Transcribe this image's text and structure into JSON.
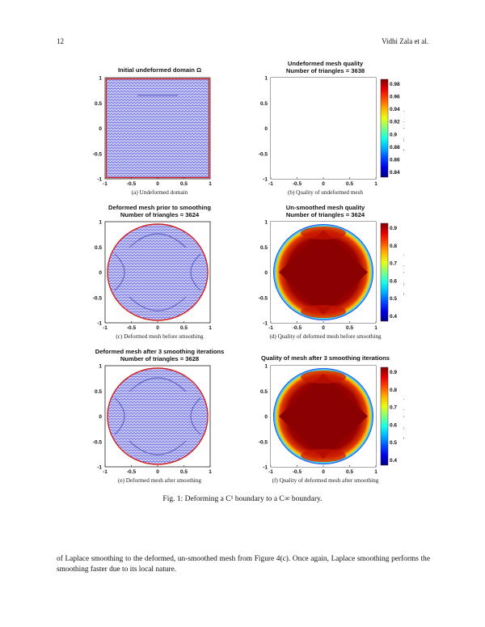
{
  "header": {
    "page_number": "12",
    "authors": "Vidhi Zala et al."
  },
  "panels": [
    {
      "id": "a",
      "title_lines": [
        "Initial undeformed domain Ω"
      ],
      "caption": "(a) Undeformed domain",
      "kind": "mesh",
      "shape": "square"
    },
    {
      "id": "b",
      "title_lines": [
        "Undeformed mesh quality",
        "Number of triangles = 3638"
      ],
      "caption": "(b) Quality of undeformed mesh",
      "kind": "quality",
      "shape": "square",
      "colorbar": {
        "label": "Quality of triangles",
        "ticks": [
          "0.98",
          "0.96",
          "0.94",
          "0.92",
          "0.9",
          "0.88",
          "0.86",
          "0.84"
        ]
      }
    },
    {
      "id": "c",
      "title_lines": [
        "Deformed mesh prior to smoothing",
        "Number of triangles = 3624"
      ],
      "caption": "(c) Deformed mesh before smoothing",
      "kind": "mesh",
      "shape": "circle"
    },
    {
      "id": "d",
      "title_lines": [
        "Un-smoothed mesh quality",
        "Number of triangles = 3624"
      ],
      "caption": "(d) Quality of deformed mesh before smoothing",
      "kind": "quality",
      "shape": "circle",
      "colorbar": {
        "label": "Quality of triangles",
        "ticks": [
          "0.9",
          "0.8",
          "0.7",
          "0.6",
          "0.5",
          "0.4"
        ]
      }
    },
    {
      "id": "e",
      "title_lines": [
        "Deformed mesh after 3 smoothing iterations",
        "Number of triangles = 3628"
      ],
      "caption": "(e) Deformed mesh after smoothing",
      "kind": "mesh",
      "shape": "circle"
    },
    {
      "id": "f",
      "title_lines": [
        "Quality of mesh after 3 smoothing iterations"
      ],
      "caption": "(f) Quality of deformed mesh after smoothing",
      "kind": "quality",
      "shape": "circle",
      "colorbar": {
        "label": "Quality of triangles",
        "ticks": [
          "0.9",
          "0.8",
          "0.7",
          "0.6",
          "0.5",
          "0.4"
        ]
      }
    }
  ],
  "axes": {
    "x_ticks": [
      "-1",
      "-0.5",
      "0",
      "0.5",
      "1"
    ],
    "y_ticks": [
      "1",
      "0.5",
      "0",
      "-0.5",
      "-1"
    ]
  },
  "figure_caption": "Fig. 1: Deforming a C¹ boundary to a C∞ boundary.",
  "body_text": "of Laplace smoothing to the deformed, un-smoothed mesh from Figure 4(c). Once again, Laplace smoothing performs the smoothing faster due to its local nature.",
  "colors": {
    "mesh": "#3a3ad8",
    "boundary": "#d42020",
    "quality_high": "#8b0000"
  }
}
